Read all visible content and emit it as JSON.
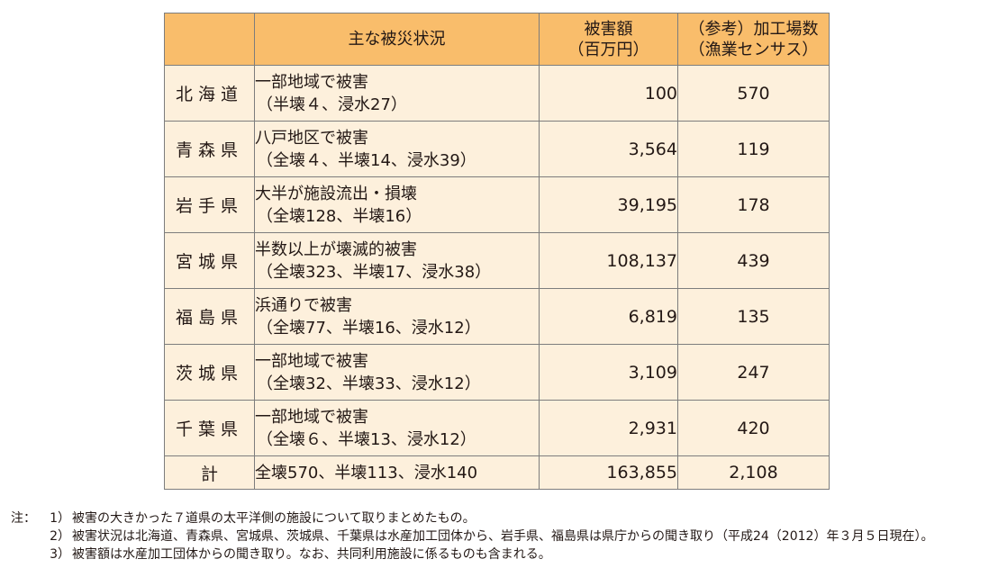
{
  "table": {
    "headers": {
      "status": "主な被災状況",
      "amount_line1": "被害額",
      "amount_line2": "（百万円）",
      "plants_line1": "（参考）加工場数",
      "plants_line2": "（漁業センサス）"
    },
    "rows": [
      {
        "pref": "北海道",
        "desc1": "一部地域で被害",
        "desc2": "（半壊４、浸水27）",
        "amount": "100",
        "plants": "570"
      },
      {
        "pref": "青森県",
        "desc1": "八戸地区で被害",
        "desc2": "（全壊４、半壊14、浸水39）",
        "amount": "3,564",
        "plants": "119"
      },
      {
        "pref": "岩手県",
        "desc1": "大半が施設流出・損壊",
        "desc2": "（全壊128、半壊16）",
        "amount": "39,195",
        "plants": "178"
      },
      {
        "pref": "宮城県",
        "desc1": "半数以上が壊滅的被害",
        "desc2": "（全壊323、半壊17、浸水38）",
        "amount": "108,137",
        "plants": "439"
      },
      {
        "pref": "福島県",
        "desc1": "浜通りで被害",
        "desc2": "（全壊77、半壊16、浸水12）",
        "amount": "6,819",
        "plants": "135"
      },
      {
        "pref": "茨城県",
        "desc1": "一部地域で被害",
        "desc2": "（全壊32、半壊33、浸水12）",
        "amount": "3,109",
        "plants": "247"
      },
      {
        "pref": "千葉県",
        "desc1": "一部地域で被害",
        "desc2": "（全壊６、半壊13、浸水12）",
        "amount": "2,931",
        "plants": "420"
      }
    ],
    "total": {
      "label": "計",
      "desc": "全壊570、半壊113、浸水140",
      "amount": "163,855",
      "plants": "2,108"
    }
  },
  "notes": {
    "prefix": "注：",
    "items": [
      {
        "mark": "1）",
        "text": "被害の大きかった７道県の太平洋側の施設について取りまとめたもの。"
      },
      {
        "mark": "2）",
        "text": "被害状況は北海道、青森県、宮城県、茨城県、千葉県は水産加工団体から、岩手県、福島県は県庁からの聞き取り（平成24（2012）年３月５日現在）。"
      },
      {
        "mark": "3）",
        "text": "被害額は水産加工団体からの聞き取り。なお、共同利用施設に係るものも含まれる。"
      }
    ]
  },
  "colors": {
    "header_bg": "#f9bd6b",
    "cell_bg": "#fdf0dc",
    "border": "#7d7d7d"
  }
}
